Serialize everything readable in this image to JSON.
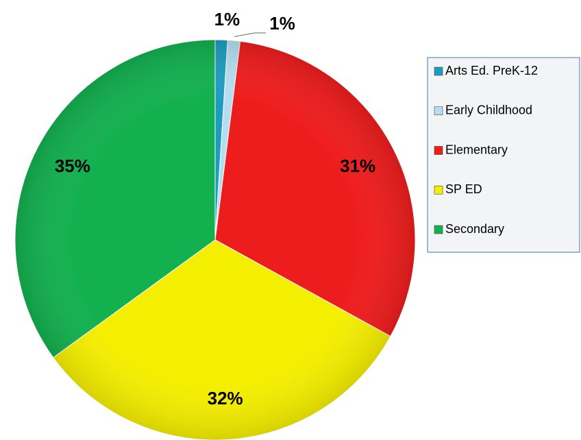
{
  "chart_data": {
    "type": "pie",
    "categories": [
      "Arts Ed. PreK-12",
      "Early Childhood",
      "Elementary",
      "SP ED",
      "Secondary"
    ],
    "values": [
      1,
      1,
      31,
      32,
      35
    ],
    "value_labels": [
      "1%",
      "1%",
      "31%",
      "32%",
      "35%"
    ],
    "colors": [
      "#1e9cc0",
      "#b4def0",
      "#ee1d1d",
      "#f4ee00",
      "#13b04f"
    ],
    "legend": "right"
  }
}
